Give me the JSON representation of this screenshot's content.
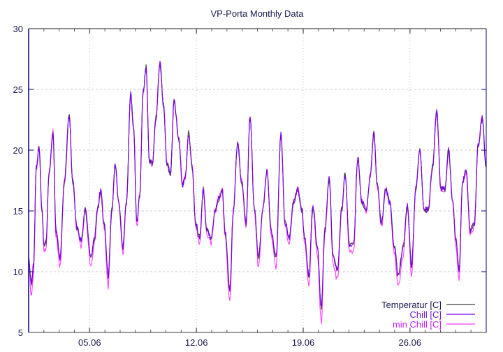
{
  "chart_data": {
    "type": "line",
    "title": "VP-Porta Monthly Data",
    "xlabel": "",
    "ylabel": "",
    "xlim": [
      1,
      31
    ],
    "ylim": [
      5,
      30
    ],
    "yticks": [
      5,
      10,
      15,
      20,
      25,
      30
    ],
    "ytick_labels": [
      "5",
      "10",
      "15",
      "20",
      "25",
      "30"
    ],
    "xticks": [
      5,
      12,
      19,
      26
    ],
    "xtick_labels": [
      "05.06",
      "12.06",
      "19.06",
      "26.06"
    ],
    "grid": true,
    "legend_position": "bottom-right",
    "x_unit": "day of June",
    "x": [
      1.0,
      1.18,
      1.32,
      1.5,
      1.69,
      1.87,
      2.01,
      2.15,
      2.33,
      2.6,
      2.79,
      3.06,
      3.34,
      3.66,
      3.89,
      4.16,
      4.44,
      4.71,
      5.08,
      5.31,
      5.54,
      5.72,
      5.95,
      6.22,
      6.45,
      6.68,
      6.91,
      7.18,
      7.41,
      7.69,
      7.87,
      8.1,
      8.28,
      8.51,
      8.7,
      8.92,
      9.11,
      9.34,
      9.61,
      9.84,
      10.07,
      10.3,
      10.53,
      10.85,
      11.08,
      11.26,
      11.49,
      11.72,
      11.95,
      12.22,
      12.45,
      12.68,
      12.96,
      13.23,
      13.46,
      13.69,
      13.87,
      14.19,
      14.42,
      14.7,
      14.97,
      15.25,
      15.52,
      15.8,
      16.07,
      16.35,
      16.62,
      16.9,
      17.22,
      17.54,
      17.81,
      18.09,
      18.36,
      18.64,
      18.91,
      19.09,
      19.37,
      19.64,
      19.92,
      20.19,
      20.42,
      20.7,
      20.97,
      21.25,
      21.52,
      21.75,
      22.03,
      22.3,
      22.58,
      22.85,
      23.13,
      23.4,
      23.63,
      23.86,
      24.13,
      24.41,
      24.68,
      24.96,
      25.23,
      25.55,
      25.83,
      26.1,
      26.38,
      26.65,
      26.93,
      27.2,
      27.48,
      27.75,
      28.03,
      28.3,
      28.53,
      28.81,
      28.99,
      29.22,
      29.45,
      29.68,
      29.95,
      30.23,
      30.46,
      30.73,
      31.0
    ],
    "series": [
      {
        "name": "Temperatur [C]",
        "color": "#404040",
        "values": [
          11.1,
          9.1,
          10.5,
          18.6,
          20.2,
          15.1,
          12.2,
          12.5,
          18,
          21.5,
          13.4,
          11.1,
          17.4,
          22.8,
          17.4,
          13.7,
          12.5,
          15.1,
          11.1,
          12.8,
          15.4,
          16.6,
          14,
          9.7,
          15.1,
          18.9,
          15.7,
          12,
          15.7,
          24.6,
          22,
          14,
          16.3,
          24.9,
          26.8,
          19.1,
          18.9,
          22.6,
          27.2,
          23.7,
          18.9,
          18,
          24,
          20.9,
          17.1,
          17.7,
          21.4,
          18.6,
          14,
          12.8,
          16.8,
          13.4,
          12.8,
          15.1,
          16,
          16.8,
          13.4,
          8.5,
          15.1,
          20.6,
          17.4,
          14,
          22.9,
          15.1,
          11.1,
          15.1,
          18.3,
          13.4,
          11.1,
          21.4,
          14,
          12.8,
          15.7,
          16.8,
          15.1,
          12.8,
          9.7,
          15.4,
          12.2,
          7.1,
          13.4,
          17.7,
          11.1,
          10.2,
          15.1,
          18,
          12.2,
          12.2,
          19.4,
          15.7,
          15.1,
          18,
          21.4,
          17.1,
          14,
          16.8,
          15.7,
          12.2,
          9.7,
          12,
          15.4,
          10.5,
          16.8,
          20,
          15.1,
          15.1,
          18.6,
          23.2,
          16.8,
          16.8,
          20,
          15.7,
          12.8,
          10.2,
          17.4,
          18.3,
          13.4,
          14,
          20.3,
          22.6,
          18.6
        ]
      },
      {
        "name": "Chill [C]",
        "color": "#7a00f0",
        "values": [
          11.1,
          9.1,
          10.5,
          18.6,
          20.2,
          15.1,
          12.2,
          12.5,
          18,
          21.5,
          13.4,
          11.1,
          17.4,
          22.8,
          17.4,
          13.7,
          12.5,
          15.1,
          11.1,
          12.8,
          15.4,
          16.6,
          14,
          9.7,
          15.1,
          18.9,
          15.7,
          12,
          15.7,
          24.6,
          22,
          14,
          16.3,
          24.9,
          26.8,
          19.1,
          18.9,
          22.6,
          27.2,
          23.7,
          18.9,
          18,
          24,
          20.9,
          17.1,
          17.7,
          21.4,
          18.6,
          14,
          12.8,
          16.8,
          13.4,
          12.8,
          15.1,
          16,
          16.8,
          13.4,
          8.5,
          15.1,
          20.6,
          17.4,
          14,
          22.9,
          15.1,
          11.1,
          15.1,
          18.3,
          13.4,
          11.1,
          21.4,
          14,
          12.8,
          15.7,
          16.8,
          15.1,
          12.8,
          9.7,
          15.4,
          12.2,
          7.1,
          13.4,
          17.7,
          11.1,
          10.2,
          15.1,
          18,
          12.2,
          12.2,
          19.4,
          15.7,
          15.1,
          18,
          21.4,
          17.1,
          14,
          16.8,
          15.7,
          12.2,
          9.7,
          12,
          15.4,
          10.5,
          16.8,
          20,
          15.1,
          15.1,
          18.6,
          23.2,
          16.8,
          16.8,
          20,
          15.7,
          12.8,
          10.2,
          17.4,
          18.3,
          13.4,
          14,
          20.3,
          22.6,
          18.6
        ]
      },
      {
        "name": "min Chill [C]",
        "color": "#ff40ff",
        "values": [
          10.4,
          8.1,
          9.7,
          18.6,
          20.2,
          15.0,
          11.6,
          12.0,
          18,
          21.5,
          13.0,
          10.4,
          17.4,
          22.8,
          17.4,
          13.4,
          12.0,
          15.0,
          10.4,
          12.3,
          15.3,
          16.6,
          13.7,
          8.8,
          15.0,
          18.9,
          15.7,
          11.4,
          15.7,
          24.6,
          22,
          13.7,
          16.3,
          24.9,
          26.8,
          19.1,
          18.9,
          22.6,
          27.2,
          23.7,
          18.9,
          18,
          24,
          20.9,
          17.1,
          17.7,
          21.4,
          18.6,
          13.7,
          12.3,
          16.8,
          13.0,
          12.3,
          15.0,
          16,
          16.8,
          13.0,
          7.4,
          15.0,
          20.6,
          17.4,
          13.7,
          22.9,
          15.0,
          10.4,
          15.0,
          18.3,
          13.0,
          10.4,
          21.4,
          13.7,
          12.3,
          15.7,
          16.8,
          15.0,
          12.3,
          8.8,
          15.3,
          11.6,
          5.8,
          13.0,
          17.7,
          10.4,
          9.3,
          15.0,
          18,
          11.6,
          11.6,
          19.4,
          15.7,
          15.0,
          18,
          21.4,
          17.1,
          13.7,
          16.8,
          15.7,
          11.6,
          8.8,
          11.4,
          15.3,
          9.7,
          16.8,
          20,
          15.0,
          15.0,
          18.6,
          23.2,
          16.8,
          16.8,
          20,
          15.7,
          12.3,
          9.3,
          17.4,
          18.3,
          13.0,
          13.7,
          20.3,
          22.6,
          18.6
        ]
      }
    ]
  }
}
